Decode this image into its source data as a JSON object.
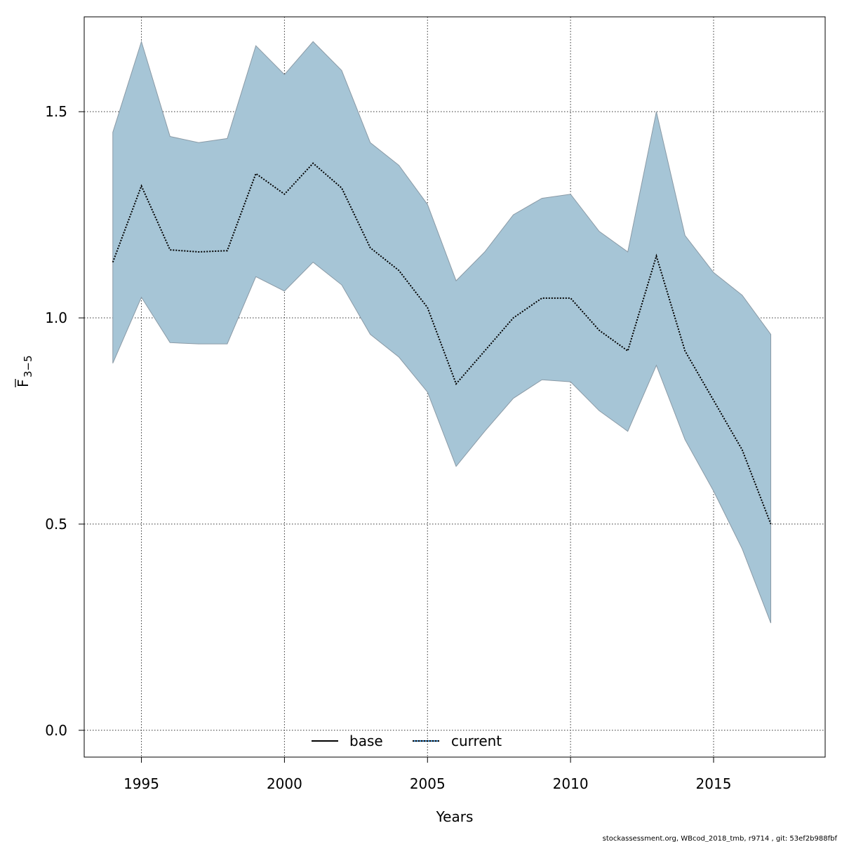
{
  "chart_data": {
    "type": "area",
    "title": "",
    "xlabel": "Years",
    "ylabel_main": "F",
    "ylabel_sub": "3−5",
    "xlim": [
      1993.0,
      2018.9
    ],
    "ylim": [
      -0.065,
      1.73
    ],
    "x_ticks": [
      1995,
      2000,
      2005,
      2010,
      2015
    ],
    "x_tick_labels": [
      "1995",
      "2000",
      "2005",
      "2010",
      "2015"
    ],
    "y_ticks": [
      0.0,
      0.5,
      1.0,
      1.5
    ],
    "y_tick_labels": [
      "0.0",
      "0.5",
      "1.0",
      "1.5"
    ],
    "grid": true,
    "x": [
      1994,
      1995,
      1996,
      1997,
      1998,
      1999,
      2000,
      2001,
      2002,
      2003,
      2004,
      2005,
      2006,
      2007,
      2008,
      2009,
      2010,
      2011,
      2012,
      2013,
      2014,
      2015,
      2016,
      2017
    ],
    "series": [
      {
        "name": "current",
        "style": "dotted",
        "values": [
          1.135,
          1.32,
          1.165,
          1.16,
          1.163,
          1.35,
          1.3,
          1.375,
          1.315,
          1.17,
          1.115,
          1.025,
          0.84,
          0.92,
          1.0,
          1.048,
          1.048,
          0.97,
          0.92,
          1.15,
          0.92,
          0.8,
          0.68,
          0.5
        ]
      }
    ],
    "band": {
      "upper": [
        1.45,
        1.67,
        1.44,
        1.425,
        1.435,
        1.66,
        1.59,
        1.67,
        1.6,
        1.425,
        1.37,
        1.275,
        1.09,
        1.16,
        1.25,
        1.29,
        1.3,
        1.21,
        1.16,
        1.5,
        1.2,
        1.11,
        1.055,
        0.96
      ],
      "lower": [
        0.89,
        1.05,
        0.94,
        0.937,
        0.937,
        1.1,
        1.065,
        1.135,
        1.08,
        0.96,
        0.905,
        0.82,
        0.64,
        0.725,
        0.805,
        0.85,
        0.845,
        0.775,
        0.725,
        0.885,
        0.705,
        0.58,
        0.44,
        0.26
      ]
    },
    "legend": {
      "placement": "bottom-center",
      "entries": [
        {
          "label": "base",
          "style": "solid",
          "color": "#000000"
        },
        {
          "label": "current",
          "style": "dotted",
          "color": "#000000",
          "accent": "#1f6fb2"
        }
      ]
    },
    "colors": {
      "band_fill": "#a6c5d6",
      "band_edge": "#8a9aa6",
      "line": "#000000",
      "grid": "#333333"
    }
  },
  "footer": {
    "note": "stockassessment.org, WBcod_2018_tmb, r9714 , git: 53ef2b988fbf"
  }
}
